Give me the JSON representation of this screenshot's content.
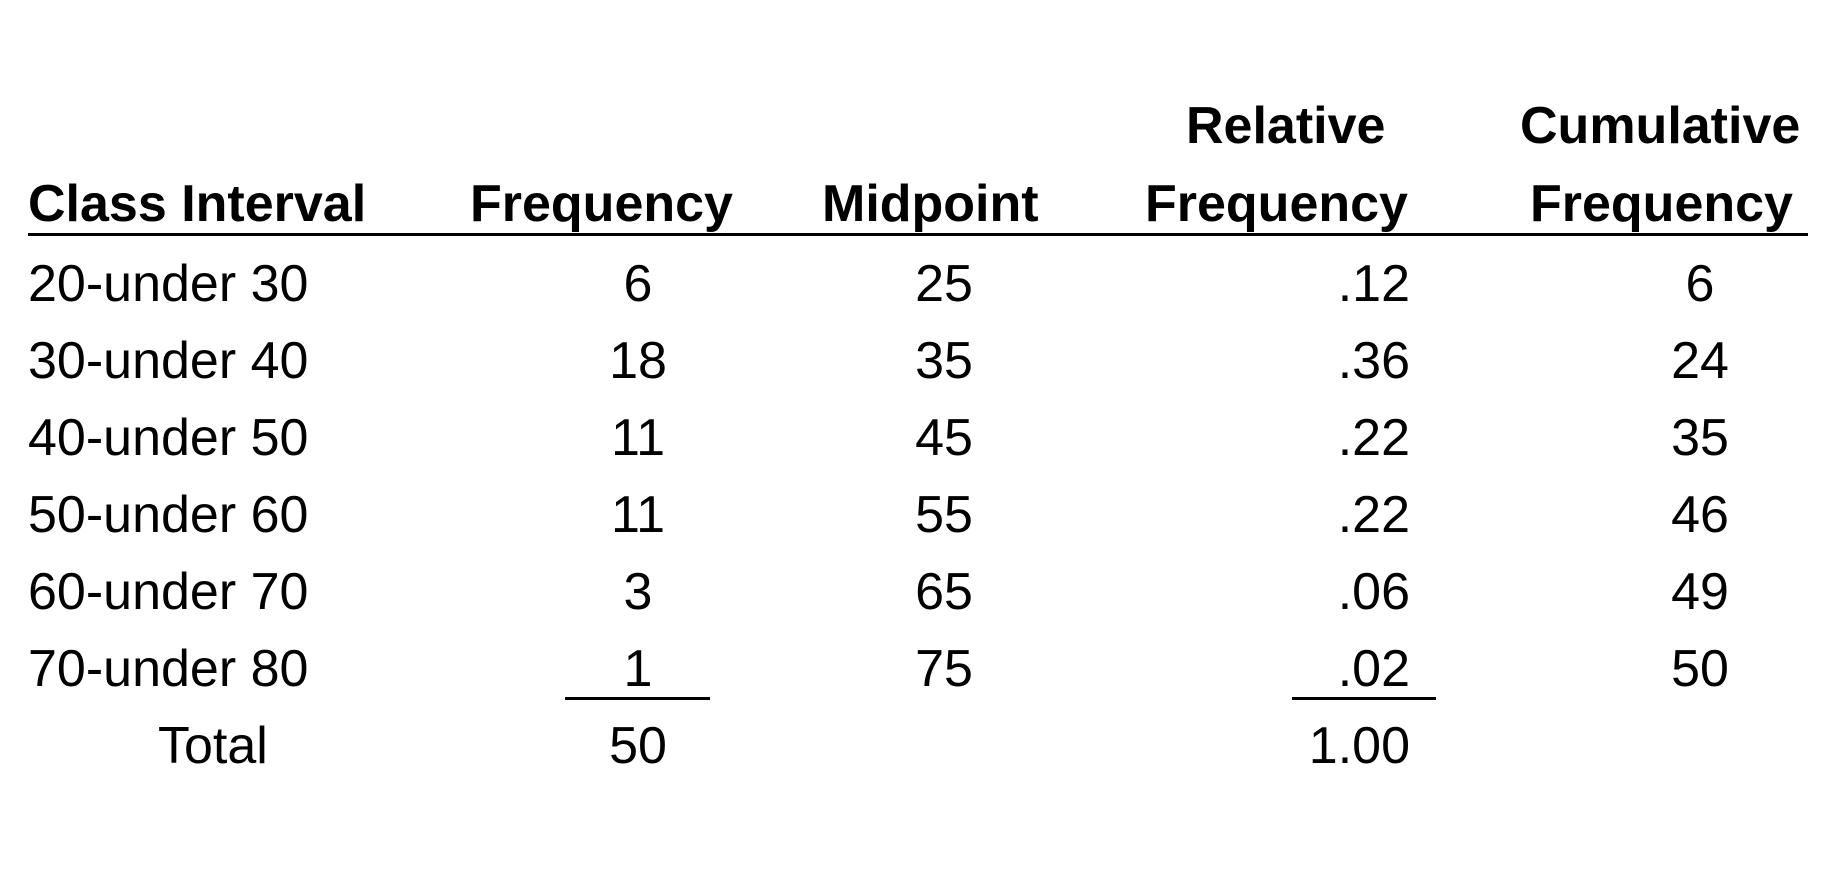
{
  "table": {
    "headers": {
      "class_interval": "Class Interval",
      "frequency": "Frequency",
      "midpoint": "Midpoint",
      "relative_frequency_line1": "Relative",
      "relative_frequency_line2": "Frequency",
      "cumulative_frequency_line1": "Cumulative",
      "cumulative_frequency_line2": "Frequency"
    },
    "rows": [
      {
        "class_interval": "20-under 30",
        "frequency": "6",
        "midpoint": "25",
        "relative_frequency": ".12",
        "cumulative_frequency": "6"
      },
      {
        "class_interval": "30-under 40",
        "frequency": "18",
        "midpoint": "35",
        "relative_frequency": ".36",
        "cumulative_frequency": "24"
      },
      {
        "class_interval": "40-under 50",
        "frequency": "11",
        "midpoint": "45",
        "relative_frequency": ".22",
        "cumulative_frequency": "35"
      },
      {
        "class_interval": "50-under 60",
        "frequency": "11",
        "midpoint": "55",
        "relative_frequency": ".22",
        "cumulative_frequency": "46"
      },
      {
        "class_interval": "60-under 70",
        "frequency": "3",
        "midpoint": "65",
        "relative_frequency": ".06",
        "cumulative_frequency": "49"
      },
      {
        "class_interval": "70-under 80",
        "frequency": "1",
        "midpoint": "75",
        "relative_frequency": ".02",
        "cumulative_frequency": "50"
      }
    ],
    "total": {
      "label": "Total",
      "frequency": "50",
      "relative_frequency": "1.00"
    }
  }
}
